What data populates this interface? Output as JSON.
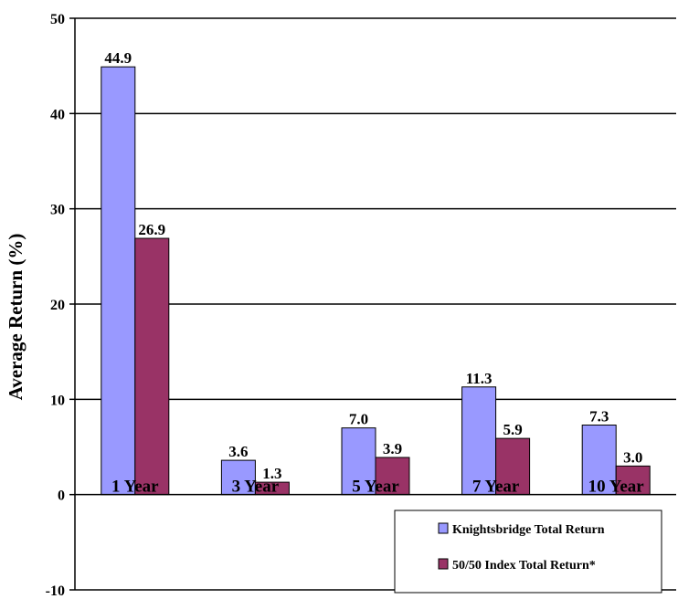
{
  "chart_data": {
    "type": "bar",
    "title": "",
    "xlabel": "",
    "ylabel": "Average Return (%)",
    "ylim": [
      -10,
      50
    ],
    "yticks": [
      -10,
      0,
      10,
      20,
      30,
      40,
      50
    ],
    "grid": true,
    "legend_position": "bottom-right",
    "categories": [
      "1 Year",
      "3 Year",
      "5 Year",
      "7 Year",
      "10 Year"
    ],
    "series": [
      {
        "name": "Knightsbridge Total Return",
        "color": "#9999ff",
        "values": [
          44.9,
          3.6,
          7.0,
          11.3,
          7.3
        ],
        "labels": [
          "44.9",
          "3.6",
          "7.0",
          "11.3",
          "7.3"
        ]
      },
      {
        "name": "50/50 Index Total Return*",
        "color": "#993366",
        "values": [
          26.9,
          1.3,
          3.9,
          5.9,
          3.0
        ],
        "labels": [
          "26.9",
          "1.3",
          "3.9",
          "5.9",
          "3.0"
        ]
      }
    ]
  }
}
